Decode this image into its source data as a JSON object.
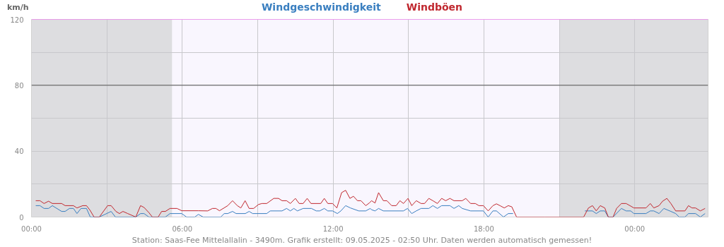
{
  "chart_data": {
    "type": "line",
    "ylabel": "km/h",
    "grid": true,
    "marker": "none",
    "line_style": "solid",
    "xlim": [
      0,
      26.92
    ],
    "ylim": [
      0,
      120
    ],
    "xticks": [
      {
        "value": 0,
        "label": "00:00"
      },
      {
        "value": 3,
        "label": null
      },
      {
        "value": 6,
        "label": "06:00"
      },
      {
        "value": 9,
        "label": null
      },
      {
        "value": 12,
        "label": "12:00"
      },
      {
        "value": 15,
        "label": null
      },
      {
        "value": 18,
        "label": "18:00"
      },
      {
        "value": 21,
        "label": null
      },
      {
        "value": 24,
        "label": "00:00"
      }
    ],
    "yticks": [
      0,
      {
        "value": 20,
        "label": null
      },
      40,
      {
        "value": 60,
        "label": null
      },
      80,
      {
        "value": 100,
        "label": null
      },
      120
    ],
    "bands": [
      {
        "axis": "x",
        "from": 0,
        "to": 5.6,
        "color": "#dddde0"
      },
      {
        "axis": "x",
        "from": 5.6,
        "to": 21.0,
        "color": "#f9f6fe"
      },
      {
        "axis": "x",
        "from": 21.0,
        "to": 26.92,
        "color": "#dddde0"
      }
    ],
    "ref_lines": [
      {
        "axis": "y",
        "value": 80,
        "color": "#555555"
      },
      {
        "axis": "y",
        "value": 120,
        "color": "#ff66ff"
      }
    ],
    "series": [
      {
        "name": "Windgeschwindigkeit",
        "color": "#3a7fc0",
        "x": [
          0.17,
          0.34,
          0.5,
          0.68,
          0.83,
          1.2,
          1.34,
          1.51,
          1.67,
          1.81,
          1.97,
          2.19,
          2.34,
          2.7,
          3.17,
          3.34,
          4.15,
          4.34,
          4.48,
          4.67,
          5.33,
          5.51,
          5.98,
          6.17,
          6.5,
          6.64,
          6.83,
          7.53,
          7.67,
          7.81,
          8.0,
          8.14,
          8.51,
          8.66,
          8.8,
          9.36,
          9.5,
          9.97,
          10.15,
          10.3,
          10.44,
          10.58,
          10.81,
          11.14,
          11.33,
          11.47,
          11.65,
          11.79,
          11.98,
          12.17,
          12.31,
          12.5,
          12.69,
          13.02,
          13.3,
          13.48,
          13.53,
          13.67,
          13.81,
          14.0,
          14.8,
          14.96,
          15.13,
          15.31,
          15.5,
          15.81,
          15.97,
          16.15,
          16.32,
          16.65,
          16.81,
          17.0,
          17.14,
          17.47,
          17.98,
          18.17,
          18.36,
          18.5,
          18.78,
          18.97,
          19.16,
          20.5,
          22.02,
          22.32,
          22.47,
          22.63,
          22.81,
          22.95,
          23.14,
          23.47,
          23.66,
          23.84,
          23.97,
          24.45,
          24.62,
          24.76,
          24.97,
          25.16,
          25.44,
          25.63,
          25.77,
          26.0,
          26.14,
          26.42,
          26.61,
          26.8
        ],
        "values": [
          6.9,
          6.9,
          5.2,
          5.2,
          6.9,
          3.4,
          3.4,
          5.2,
          5.2,
          2.1,
          5.2,
          5.2,
          0,
          0,
          3.4,
          0,
          0,
          2.1,
          2.1,
          0,
          0,
          2.1,
          2.1,
          0,
          0,
          1.6,
          0,
          0,
          2.1,
          2.1,
          3.4,
          2.1,
          2.1,
          3.4,
          2.1,
          2.1,
          3.7,
          3.7,
          5.2,
          3.7,
          5.2,
          3.7,
          5.2,
          5.2,
          3.7,
          3.7,
          5.2,
          3.7,
          3.7,
          2.1,
          3.7,
          6.9,
          5.5,
          3.7,
          3.7,
          5.2,
          4.4,
          3.7,
          5.2,
          3.7,
          3.7,
          5.2,
          2.1,
          3.7,
          5.2,
          5.2,
          6.9,
          5.2,
          6.9,
          6.9,
          5.2,
          6.9,
          5.2,
          3.7,
          3.7,
          0,
          3.7,
          3.7,
          0,
          2.1,
          2.1,
          null,
          3.7,
          3.7,
          2.1,
          3.7,
          3.7,
          0,
          0,
          5.2,
          3.7,
          3.7,
          2.1,
          2.1,
          3.7,
          3.7,
          2.1,
          5.2,
          3.4,
          2.1,
          0,
          0,
          2.1,
          2.1,
          0,
          2.1
        ]
      },
      {
        "name": "Windböen",
        "color": "#c0282f",
        "x": [
          0.17,
          0.34,
          0.5,
          0.68,
          0.83,
          1.2,
          1.34,
          1.67,
          1.81,
          2.04,
          2.19,
          2.33,
          2.49,
          2.7,
          3.03,
          3.17,
          3.36,
          3.5,
          3.64,
          3.83,
          4.15,
          4.34,
          4.48,
          4.67,
          4.81,
          5.04,
          5.18,
          5.33,
          5.51,
          5.79,
          5.98,
          6.64,
          7.01,
          7.2,
          7.34,
          7.48,
          7.81,
          8.0,
          8.19,
          8.33,
          8.5,
          8.66,
          8.84,
          9.03,
          9.17,
          9.36,
          9.64,
          9.83,
          9.97,
          10.15,
          10.3,
          10.5,
          10.65,
          10.81,
          10.97,
          11.12,
          11.51,
          11.65,
          11.79,
          11.98,
          12.15,
          12.34,
          12.5,
          12.67,
          12.81,
          12.97,
          13.11,
          13.3,
          13.44,
          13.53,
          13.67,
          13.81,
          14.0,
          14.14,
          14.33,
          14.51,
          14.66,
          14.8,
          14.98,
          15.13,
          15.31,
          15.5,
          15.64,
          15.81,
          15.97,
          16.15,
          16.32,
          16.48,
          16.65,
          16.81,
          17.14,
          17.28,
          17.47,
          17.66,
          17.8,
          17.98,
          18.17,
          18.36,
          18.5,
          18.64,
          18.81,
          18.97,
          19.11,
          19.3,
          20.42,
          21.97,
          22.16,
          22.32,
          22.47,
          22.63,
          22.81,
          22.95,
          23.14,
          23.28,
          23.47,
          23.66,
          23.97,
          24.45,
          24.62,
          24.76,
          24.97,
          25.11,
          25.28,
          25.44,
          25.63,
          26.0,
          26.14,
          26.28,
          26.42,
          26.61,
          26.8
        ],
        "values": [
          9.9,
          9.9,
          8.2,
          9.6,
          8.2,
          8.2,
          6.9,
          6.9,
          5.5,
          6.9,
          6.9,
          4.1,
          0,
          0,
          6.9,
          6.9,
          3.4,
          2.1,
          3.4,
          2.1,
          0,
          6.9,
          5.8,
          2.7,
          0,
          0,
          3.4,
          3.4,
          5.2,
          5.2,
          3.8,
          3.8,
          3.7,
          5.2,
          5.2,
          3.8,
          6.9,
          9.9,
          6.9,
          5.5,
          9.9,
          5.2,
          5.2,
          7.6,
          8.2,
          8.2,
          11.3,
          11.3,
          9.9,
          9.9,
          8.2,
          11.3,
          8.2,
          8.2,
          11.3,
          8.2,
          8.2,
          11.3,
          8.2,
          8.2,
          5.5,
          14.8,
          16.2,
          11.3,
          12.6,
          9.9,
          9.9,
          6.9,
          8.5,
          9.9,
          8.5,
          14.8,
          9.9,
          9.9,
          6.9,
          6.9,
          9.9,
          8.2,
          11.3,
          6.9,
          9.9,
          8.2,
          8.2,
          11.3,
          9.9,
          8.2,
          11.3,
          9.9,
          11.3,
          9.9,
          9.9,
          11.3,
          8.2,
          8.2,
          6.9,
          6.9,
          3.7,
          6.9,
          8.0,
          6.9,
          5.5,
          6.9,
          6.2,
          0,
          0,
          0,
          5.5,
          6.9,
          3.7,
          6.9,
          5.5,
          0,
          0,
          5.2,
          8.2,
          8.2,
          5.5,
          5.5,
          8.2,
          5.5,
          6.9,
          9.6,
          11.3,
          8.2,
          3.7,
          3.7,
          6.9,
          5.5,
          5.5,
          3.7,
          5.2
        ]
      }
    ],
    "annotations": [
      "Station: Saas-Fee Mittelallalin - 3490m. Grafik erstellt: 09.05.2025 - 02:50 Uhr. Daten werden automatisch gemessen!"
    ]
  }
}
